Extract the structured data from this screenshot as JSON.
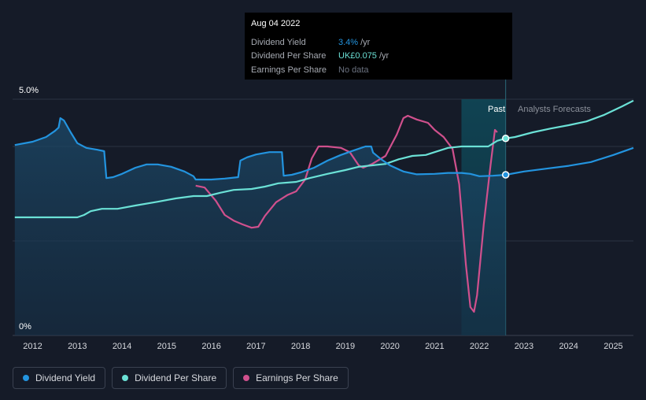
{
  "tooltip": {
    "date": "Aug 04 2022",
    "rows": [
      {
        "key": "Dividend Yield",
        "value": "3.4%",
        "unit": "/yr",
        "color": "#2394df"
      },
      {
        "key": "Dividend Per Share",
        "value": "UK£0.075",
        "unit": "/yr",
        "color": "#6be1d6"
      },
      {
        "key": "Earnings Per Share",
        "value": "No data",
        "unit": "",
        "color": "#6b7280"
      }
    ]
  },
  "regions": {
    "past": "Past",
    "forecast": "Analysts Forecasts"
  },
  "legend": [
    {
      "label": "Dividend Yield",
      "color": "#2394df"
    },
    {
      "label": "Dividend Per Share",
      "color": "#6be1d6"
    },
    {
      "label": "Earnings Per Share",
      "color": "#d0508d"
    }
  ],
  "chart_data": {
    "type": "line",
    "y_axis_labels": [
      "5.0%",
      "0%"
    ],
    "ylim": [
      0,
      5.0
    ],
    "xlim": [
      2011.55,
      2025.45
    ],
    "x_ticks": [
      "2012",
      "2013",
      "2014",
      "2015",
      "2016",
      "2017",
      "2018",
      "2019",
      "2020",
      "2021",
      "2022",
      "2023",
      "2024",
      "2025"
    ],
    "past_start": 2021.6,
    "now": 2022.59,
    "series": [
      {
        "name": "Dividend Yield",
        "color": "#2394df",
        "points": [
          [
            2011.6,
            4.03
          ],
          [
            2012.0,
            4.1
          ],
          [
            2012.3,
            4.2
          ],
          [
            2012.5,
            4.33
          ],
          [
            2012.58,
            4.4
          ],
          [
            2012.62,
            4.6
          ],
          [
            2012.7,
            4.55
          ],
          [
            2012.85,
            4.3
          ],
          [
            2013.0,
            4.07
          ],
          [
            2013.2,
            3.97
          ],
          [
            2013.45,
            3.93
          ],
          [
            2013.6,
            3.9
          ],
          [
            2013.65,
            3.33
          ],
          [
            2013.8,
            3.35
          ],
          [
            2014.0,
            3.42
          ],
          [
            2014.3,
            3.55
          ],
          [
            2014.55,
            3.62
          ],
          [
            2014.8,
            3.62
          ],
          [
            2015.1,
            3.57
          ],
          [
            2015.4,
            3.47
          ],
          [
            2015.6,
            3.37
          ],
          [
            2015.65,
            3.3
          ],
          [
            2016.0,
            3.3
          ],
          [
            2016.3,
            3.32
          ],
          [
            2016.6,
            3.35
          ],
          [
            2016.65,
            3.7
          ],
          [
            2016.8,
            3.77
          ],
          [
            2017.0,
            3.83
          ],
          [
            2017.3,
            3.88
          ],
          [
            2017.58,
            3.88
          ],
          [
            2017.62,
            3.38
          ],
          [
            2017.8,
            3.4
          ],
          [
            2018.0,
            3.45
          ],
          [
            2018.3,
            3.55
          ],
          [
            2018.6,
            3.7
          ],
          [
            2018.9,
            3.82
          ],
          [
            2019.2,
            3.92
          ],
          [
            2019.45,
            4.0
          ],
          [
            2019.58,
            4.0
          ],
          [
            2019.62,
            3.87
          ],
          [
            2019.8,
            3.73
          ],
          [
            2020.0,
            3.6
          ],
          [
            2020.3,
            3.47
          ],
          [
            2020.6,
            3.41
          ],
          [
            2021.0,
            3.42
          ],
          [
            2021.3,
            3.44
          ],
          [
            2021.6,
            3.44
          ],
          [
            2021.8,
            3.42
          ],
          [
            2022.0,
            3.37
          ],
          [
            2022.3,
            3.38
          ],
          [
            2022.59,
            3.4
          ],
          [
            2023.0,
            3.47
          ],
          [
            2023.5,
            3.53
          ],
          [
            2024.0,
            3.59
          ],
          [
            2024.5,
            3.67
          ],
          [
            2025.0,
            3.82
          ],
          [
            2025.45,
            3.97
          ]
        ]
      },
      {
        "name": "Dividend Per Share",
        "color": "#6be1d6",
        "points": [
          [
            2011.6,
            2.5
          ],
          [
            2012.0,
            2.5
          ],
          [
            2012.5,
            2.5
          ],
          [
            2013.0,
            2.5
          ],
          [
            2013.15,
            2.55
          ],
          [
            2013.3,
            2.63
          ],
          [
            2013.55,
            2.68
          ],
          [
            2013.9,
            2.68
          ],
          [
            2014.3,
            2.75
          ],
          [
            2014.8,
            2.83
          ],
          [
            2015.2,
            2.9
          ],
          [
            2015.6,
            2.95
          ],
          [
            2015.9,
            2.95
          ],
          [
            2016.2,
            3.02
          ],
          [
            2016.5,
            3.08
          ],
          [
            2016.9,
            3.1
          ],
          [
            2017.2,
            3.15
          ],
          [
            2017.5,
            3.22
          ],
          [
            2017.9,
            3.25
          ],
          [
            2018.2,
            3.33
          ],
          [
            2018.6,
            3.42
          ],
          [
            2019.0,
            3.5
          ],
          [
            2019.3,
            3.57
          ],
          [
            2019.6,
            3.6
          ],
          [
            2019.9,
            3.63
          ],
          [
            2020.2,
            3.73
          ],
          [
            2020.5,
            3.8
          ],
          [
            2020.8,
            3.82
          ],
          [
            2021.0,
            3.88
          ],
          [
            2021.3,
            3.97
          ],
          [
            2021.6,
            4.0
          ],
          [
            2022.0,
            4.0
          ],
          [
            2022.2,
            4.0
          ],
          [
            2022.4,
            4.12
          ],
          [
            2022.59,
            4.17
          ],
          [
            2022.8,
            4.2
          ],
          [
            2023.2,
            4.3
          ],
          [
            2023.6,
            4.38
          ],
          [
            2024.0,
            4.45
          ],
          [
            2024.4,
            4.53
          ],
          [
            2024.8,
            4.67
          ],
          [
            2025.2,
            4.85
          ],
          [
            2025.45,
            4.97
          ]
        ]
      },
      {
        "name": "Earnings Per Share",
        "color": "#d0508d",
        "points": [
          [
            2015.65,
            3.17
          ],
          [
            2015.85,
            3.13
          ],
          [
            2016.1,
            2.85
          ],
          [
            2016.3,
            2.55
          ],
          [
            2016.5,
            2.43
          ],
          [
            2016.7,
            2.35
          ],
          [
            2016.9,
            2.28
          ],
          [
            2017.05,
            2.3
          ],
          [
            2017.2,
            2.53
          ],
          [
            2017.45,
            2.82
          ],
          [
            2017.7,
            2.97
          ],
          [
            2017.9,
            3.05
          ],
          [
            2018.1,
            3.3
          ],
          [
            2018.25,
            3.75
          ],
          [
            2018.4,
            4.0
          ],
          [
            2018.6,
            4.0
          ],
          [
            2018.9,
            3.97
          ],
          [
            2019.1,
            3.88
          ],
          [
            2019.3,
            3.6
          ],
          [
            2019.4,
            3.55
          ],
          [
            2019.6,
            3.63
          ],
          [
            2019.9,
            3.8
          ],
          [
            2020.15,
            4.25
          ],
          [
            2020.3,
            4.6
          ],
          [
            2020.4,
            4.65
          ],
          [
            2020.6,
            4.57
          ],
          [
            2020.85,
            4.5
          ],
          [
            2021.0,
            4.35
          ],
          [
            2021.2,
            4.2
          ],
          [
            2021.4,
            3.95
          ],
          [
            2021.55,
            3.2
          ],
          [
            2021.7,
            1.5
          ],
          [
            2021.8,
            0.6
          ],
          [
            2021.88,
            0.5
          ],
          [
            2021.95,
            0.85
          ],
          [
            2022.1,
            2.35
          ],
          [
            2022.25,
            3.6
          ],
          [
            2022.35,
            4.35
          ],
          [
            2022.4,
            4.3
          ]
        ]
      }
    ]
  }
}
